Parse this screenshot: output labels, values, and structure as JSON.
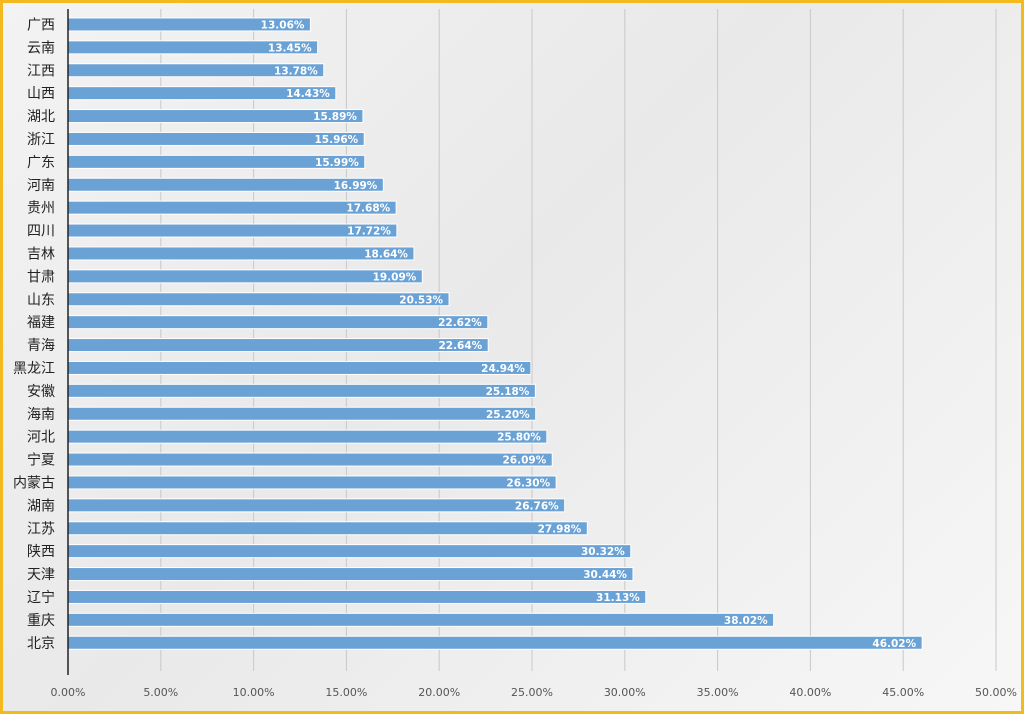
{
  "chart_data": {
    "type": "bar",
    "orientation": "horizontal",
    "title": "",
    "xlabel": "",
    "ylabel": "",
    "xlim": [
      0,
      0.5
    ],
    "x_ticks": [
      "0.00%",
      "5.00%",
      "10.00%",
      "15.00%",
      "20.00%",
      "25.00%",
      "30.00%",
      "35.00%",
      "40.00%",
      "45.00%",
      "50.00%"
    ],
    "grid": "vertical",
    "bar_color": "#6aa2d6",
    "categories": [
      "广西",
      "云南",
      "江西",
      "山西",
      "湖北",
      "浙江",
      "广东",
      "河南",
      "贵州",
      "四川",
      "吉林",
      "甘肃",
      "山东",
      "福建",
      "青海",
      "黑龙江",
      "安徽",
      "海南",
      "河北",
      "宁夏",
      "内蒙古",
      "湖南",
      "江苏",
      "陕西",
      "天津",
      "辽宁",
      "重庆",
      "北京"
    ],
    "values": [
      0.1306,
      0.1345,
      0.1378,
      0.1443,
      0.1589,
      0.1596,
      0.1599,
      0.1699,
      0.1768,
      0.1772,
      0.1864,
      0.1909,
      0.2053,
      0.2262,
      0.2264,
      0.2494,
      0.2518,
      0.252,
      0.258,
      0.2609,
      0.263,
      0.2676,
      0.2798,
      0.3032,
      0.3044,
      0.3113,
      0.3802,
      0.4602
    ],
    "data_labels": [
      "13.06%",
      "13.45%",
      "13.78%",
      "14.43%",
      "15.89%",
      "15.96%",
      "15.99%",
      "16.99%",
      "17.68%",
      "17.72%",
      "18.64%",
      "19.09%",
      "20.53%",
      "22.62%",
      "22.64%",
      "24.94%",
      "25.18%",
      "25.20%",
      "25.80%",
      "26.09%",
      "26.30%",
      "26.76%",
      "27.98%",
      "30.32%",
      "30.44%",
      "31.13%",
      "38.02%",
      "46.02%"
    ]
  }
}
